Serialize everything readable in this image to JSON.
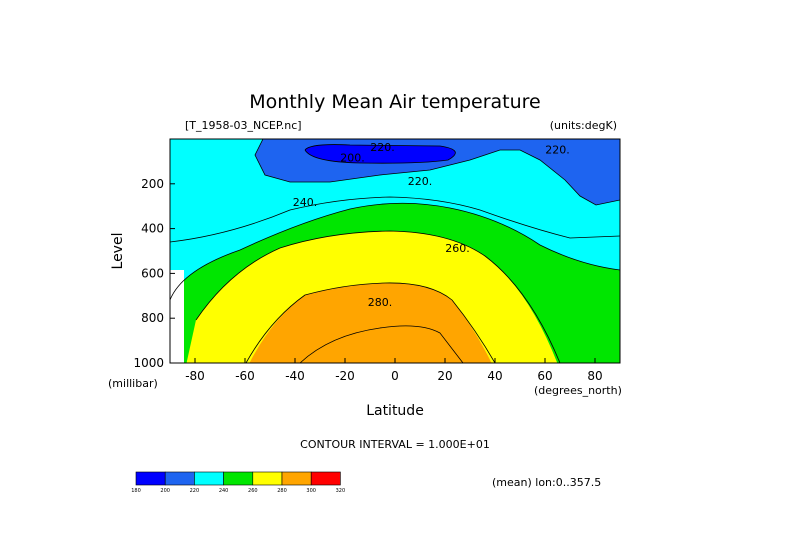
{
  "chart_data": {
    "type": "contour",
    "title": "Monthly Mean Air temperature",
    "source_label": "[T_1958-03_NCEP.nc]",
    "units_label": "(units:degK)",
    "xlabel": "Latitude",
    "ylabel": "Level",
    "y_units_label": "(millibar)",
    "x_units_label": "(degrees_north)",
    "xlim": [
      -90,
      90
    ],
    "ylim": [
      1000,
      0
    ],
    "xticks": [
      -80,
      -60,
      -40,
      -20,
      0,
      20,
      40,
      60,
      80
    ],
    "yticks": [
      200,
      400,
      600,
      800,
      1000
    ],
    "contour_interval_text": "CONTOUR INTERVAL = 1.000E+01",
    "mean_note": "(mean) lon:0..357.5",
    "contour_labels": [
      {
        "text": "220.",
        "lat": -5,
        "level": 50
      },
      {
        "text": "200.",
        "lat": -17,
        "level": 95
      },
      {
        "text": "220.",
        "lat": 65,
        "level": 60
      },
      {
        "text": "220.",
        "lat": 10,
        "level": 200
      },
      {
        "text": "240.",
        "lat": -36,
        "level": 295
      },
      {
        "text": "260.",
        "lat": 25,
        "level": 500
      },
      {
        "text": "280.",
        "lat": -6,
        "level": 740
      }
    ],
    "color_scale": {
      "levels": [
        "180",
        "200",
        "220",
        "240",
        "260",
        "280",
        "300",
        "320"
      ],
      "colors": [
        "#0000ff",
        "#1e64f0",
        "#00ffff",
        "#00e600",
        "#ffff00",
        "#ffa500",
        "#ff0000"
      ]
    }
  }
}
